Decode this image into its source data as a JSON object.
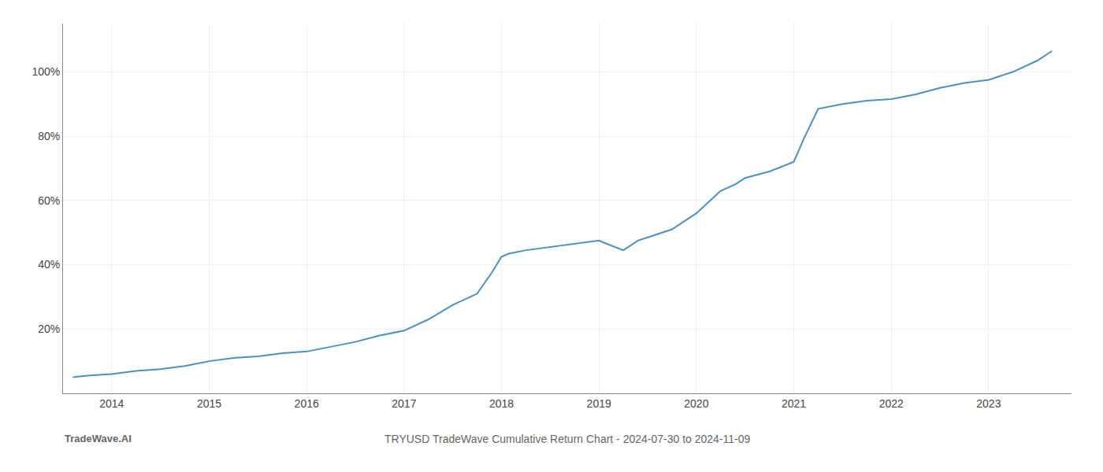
{
  "chart_data": {
    "type": "line",
    "title": "TRYUSD TradeWave Cumulative Return Chart - 2024-07-30 to 2024-11-09",
    "annotations": [
      "TradeWave.AI"
    ],
    "x": [
      2013.6,
      2013.75,
      2014.0,
      2014.25,
      2014.5,
      2014.75,
      2015.0,
      2015.25,
      2015.5,
      2015.75,
      2016.0,
      2016.25,
      2016.5,
      2016.75,
      2017.0,
      2017.25,
      2017.5,
      2017.75,
      2017.9,
      2018.0,
      2018.08,
      2018.25,
      2018.5,
      2018.75,
      2019.0,
      2019.25,
      2019.4,
      2019.5,
      2019.75,
      2020.0,
      2020.25,
      2020.4,
      2020.5,
      2020.75,
      2021.0,
      2021.1,
      2021.25,
      2021.5,
      2021.75,
      2022.0,
      2022.25,
      2022.5,
      2022.75,
      2023.0,
      2023.25,
      2023.5,
      2023.65
    ],
    "values": [
      5.0,
      5.5,
      6.0,
      7.0,
      7.5,
      8.5,
      10.0,
      11.0,
      11.5,
      12.5,
      13.0,
      14.5,
      16.0,
      18.0,
      19.5,
      23.0,
      27.5,
      31.0,
      37.5,
      42.5,
      43.5,
      44.5,
      45.5,
      46.5,
      47.5,
      44.5,
      47.5,
      48.5,
      51.0,
      56.0,
      63.0,
      65.0,
      67.0,
      69.0,
      72.0,
      79.0,
      88.5,
      90.0,
      91.0,
      91.5,
      93.0,
      95.0,
      96.5,
      97.5,
      100.0,
      103.5,
      106.5
    ],
    "color": "#4a90c4",
    "xlim": [
      2013.5,
      2023.85
    ],
    "xticks": [
      2014,
      2015,
      2016,
      2017,
      2018,
      2019,
      2020,
      2021,
      2022,
      2023
    ],
    "ylim": [
      0,
      115
    ],
    "yticks": [
      {
        "value": 20,
        "label": "20%"
      },
      {
        "value": 40,
        "label": "40%"
      },
      {
        "value": 60,
        "label": "60%"
      },
      {
        "value": 80,
        "label": "80%"
      },
      {
        "value": 100,
        "label": "100%"
      }
    ],
    "grid": true
  }
}
